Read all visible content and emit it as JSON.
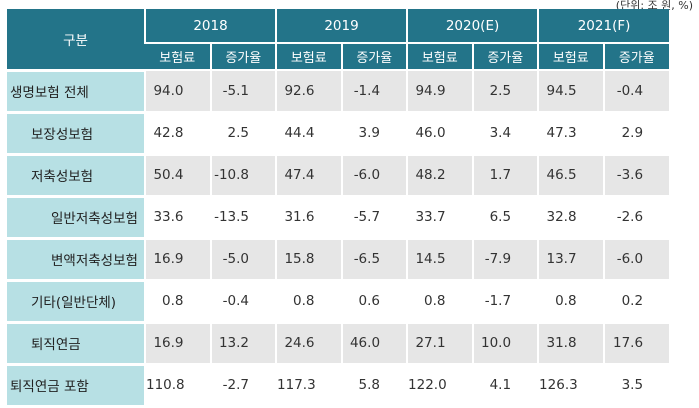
{
  "unit_note": "(단위: 조 원, %)",
  "header": {
    "category": "구분",
    "years": [
      "2018",
      "2019",
      "2020(E)",
      "2021(F)"
    ],
    "sub": [
      "보험료",
      "증가율",
      "보험료",
      "증가율",
      "보험료",
      "증가율",
      "보험료",
      "증가율"
    ]
  },
  "rows": [
    {
      "label": "생명보험 전체",
      "values": [
        "94.0",
        "-5.1",
        "92.6",
        "-1.4",
        "94.9",
        "2.5",
        "94.5",
        "-0.4"
      ]
    },
    {
      "label": "보장성보험",
      "values": [
        "42.8",
        "2.5",
        "44.4",
        "3.9",
        "46.0",
        "3.4",
        "47.3",
        "2.9"
      ]
    },
    {
      "label": "저축성보험",
      "values": [
        "50.4",
        "-10.8",
        "47.4",
        "-6.0",
        "48.2",
        "1.7",
        "46.5",
        "-3.6"
      ]
    },
    {
      "label": "일반저축성보험",
      "values": [
        "33.6",
        "-13.5",
        "31.6",
        "-5.7",
        "33.7",
        "6.5",
        "32.8",
        "-2.6"
      ]
    },
    {
      "label": "변액저축성보험",
      "values": [
        "16.9",
        "-5.0",
        "15.8",
        "-6.5",
        "14.5",
        "-7.9",
        "13.7",
        "-6.0"
      ]
    },
    {
      "label": "기타(일반단체)",
      "values": [
        "0.8",
        "-0.4",
        "0.8",
        "0.6",
        "0.8",
        "-1.7",
        "0.8",
        "0.2"
      ]
    },
    {
      "label": "퇴직연금",
      "values": [
        "16.9",
        "13.2",
        "24.6",
        "46.0",
        "27.1",
        "10.0",
        "31.8",
        "17.6"
      ]
    },
    {
      "label": "퇴직연금 포함",
      "values": [
        "110.8",
        "-2.7",
        "117.3",
        "5.8",
        "122.0",
        "4.1",
        "126.3",
        "3.5"
      ]
    }
  ],
  "colors": {
    "header_bg": "#237489",
    "label_bg": "#b7e0e4",
    "shade_bg": "#e6e6e6"
  }
}
